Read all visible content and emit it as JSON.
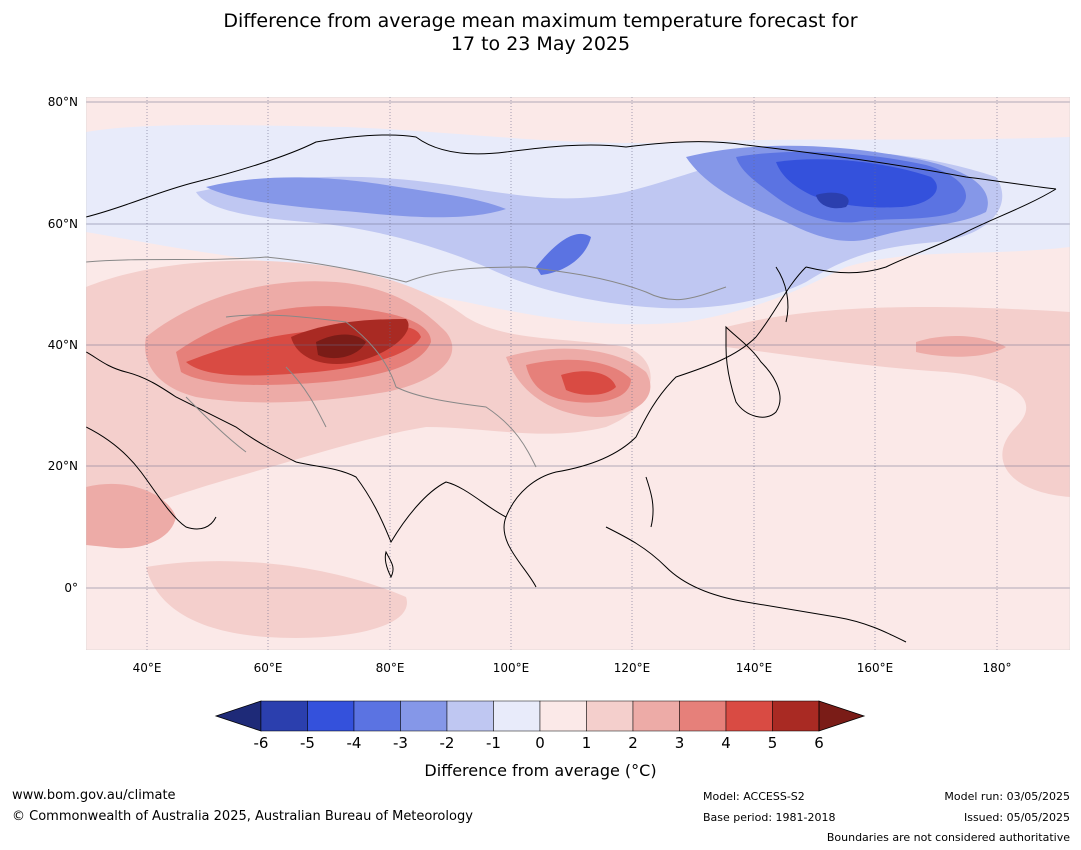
{
  "title_line1": "Difference from average mean maximum temperature forecast for",
  "title_line2": "17 to 23 May 2025",
  "lat_labels": [
    "80°N",
    "60°N",
    "40°N",
    "20°N",
    "0°"
  ],
  "lon_labels": [
    "40°E",
    "60°E",
    "80°E",
    "100°E",
    "120°E",
    "140°E",
    "160°E",
    "180°"
  ],
  "colorbar": {
    "ticks": [
      "-6",
      "-5",
      "-4",
      "-3",
      "-2",
      "-1",
      "0",
      "1",
      "2",
      "3",
      "4",
      "5",
      "6"
    ],
    "colors": [
      "#2b3fae",
      "#3451dc",
      "#5b73e2",
      "#8597e8",
      "#bfc7f2",
      "#e8ebfa",
      "#fbe9e8",
      "#f4cfcc",
      "#edaba7",
      "#e6807a",
      "#d94b43",
      "#a92a23"
    ],
    "under_color": "#1e2a78",
    "over_color": "#7a1c17",
    "label": "Difference from average (°C)"
  },
  "footer": {
    "website": "www.bom.gov.au/climate",
    "copyright": "© Commonwealth of Australia 2025, Australian Bureau of Meteorology",
    "model": "Model: ACCESS-S2",
    "base_period": "Base period: 1981-2018",
    "model_run": "Model run: 03/05/2025",
    "issued": "Issued: 05/05/2025",
    "disclaimer": "Boundaries are not considered authoritative"
  }
}
